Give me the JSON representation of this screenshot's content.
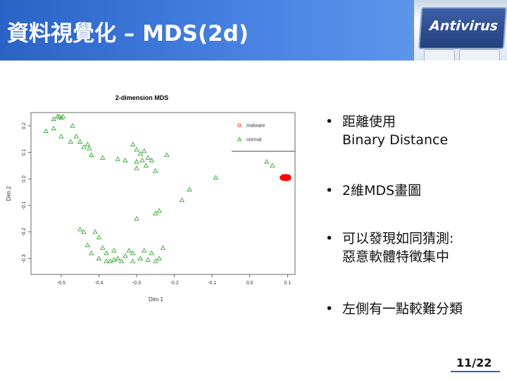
{
  "header": {
    "title": "資料視覺化 – MDS(2d)",
    "banner_text": "Antivirus"
  },
  "bullets": [
    {
      "lines": [
        "距離使用",
        "Binary Distance"
      ]
    },
    {
      "lines": [
        "2維MDS畫圖"
      ]
    },
    {
      "lines": [
        "可以發現如同猜測:",
        "惡意軟體特徵集中"
      ]
    },
    {
      "lines": [
        "左側有一點較難分類"
      ]
    }
  ],
  "bullet_symbol": "•",
  "page_number": "11/22",
  "chart_data": {
    "type": "scatter",
    "title": "2-dimension MDS",
    "xlabel": "Dim 1",
    "ylabel": "Dim 2",
    "xlim": [
      -0.58,
      0.12
    ],
    "ylim": [
      -0.36,
      0.25
    ],
    "x_ticks": [
      -0.5,
      -0.4,
      -0.3,
      -0.2,
      -0.1,
      0.0,
      0.1
    ],
    "x_tick_labels": [
      "-0.5",
      "-0.4",
      "-0.3",
      "-0.2",
      "-0.1",
      "0.0",
      "0.1"
    ],
    "y_ticks": [
      0.2,
      0.1,
      0.0,
      -0.1,
      -0.2,
      -0.3
    ],
    "y_tick_labels": [
      "0.2",
      "0.1",
      "0.0",
      "-0.1",
      "-0.2",
      "-0.3"
    ],
    "legend_position": "top-right",
    "colors": {
      "malware": "#ff0000",
      "normal": "#22a022"
    },
    "series": [
      {
        "name": "malware",
        "marker": "circle",
        "center": [
          0.095,
          0.005
        ],
        "spread": [
          0.012,
          0.008
        ],
        "count": 170
      },
      {
        "name": "normal",
        "marker": "triangle",
        "points": [
          [
            -0.505,
            0.235
          ],
          [
            -0.51,
            0.235
          ],
          [
            -0.495,
            0.235
          ],
          [
            -0.52,
            0.225
          ],
          [
            -0.5,
            0.23
          ],
          [
            -0.54,
            0.18
          ],
          [
            -0.52,
            0.19
          ],
          [
            -0.5,
            0.16
          ],
          [
            -0.47,
            0.2
          ],
          [
            -0.46,
            0.16
          ],
          [
            -0.475,
            0.14
          ],
          [
            -0.45,
            0.14
          ],
          [
            -0.44,
            0.12
          ],
          [
            -0.43,
            0.13
          ],
          [
            -0.425,
            0.115
          ],
          [
            -0.42,
            0.09
          ],
          [
            -0.39,
            0.08
          ],
          [
            -0.35,
            0.075
          ],
          [
            -0.33,
            0.07
          ],
          [
            -0.31,
            0.13
          ],
          [
            -0.3,
            0.11
          ],
          [
            -0.3,
            0.065
          ],
          [
            -0.29,
            0.095
          ],
          [
            -0.285,
            0.07
          ],
          [
            -0.28,
            0.105
          ],
          [
            -0.275,
            0.05
          ],
          [
            -0.27,
            0.08
          ],
          [
            -0.3,
            0.04
          ],
          [
            -0.26,
            0.07
          ],
          [
            -0.25,
            0.03
          ],
          [
            -0.22,
            0.09
          ],
          [
            -0.16,
            -0.04
          ],
          [
            -0.09,
            0.005
          ],
          [
            -0.3,
            -0.15
          ],
          [
            -0.25,
            -0.13
          ],
          [
            -0.24,
            -0.12
          ],
          [
            -0.18,
            -0.08
          ],
          [
            -0.45,
            -0.19
          ],
          [
            -0.44,
            -0.2
          ],
          [
            -0.43,
            -0.25
          ],
          [
            -0.41,
            -0.2
          ],
          [
            -0.4,
            -0.22
          ],
          [
            -0.39,
            -0.26
          ],
          [
            -0.38,
            -0.28
          ],
          [
            -0.42,
            -0.28
          ],
          [
            -0.4,
            -0.3
          ],
          [
            -0.38,
            -0.31
          ],
          [
            -0.37,
            -0.31
          ],
          [
            -0.36,
            -0.305
          ],
          [
            -0.35,
            -0.3
          ],
          [
            -0.34,
            -0.31
          ],
          [
            -0.33,
            -0.29
          ],
          [
            -0.31,
            -0.31
          ],
          [
            -0.29,
            -0.3
          ],
          [
            -0.27,
            -0.305
          ],
          [
            -0.25,
            -0.31
          ],
          [
            -0.24,
            -0.3
          ],
          [
            -0.26,
            -0.28
          ],
          [
            -0.28,
            -0.27
          ],
          [
            -0.31,
            -0.28
          ],
          [
            -0.32,
            -0.27
          ],
          [
            -0.36,
            -0.27
          ],
          [
            -0.23,
            -0.26
          ],
          [
            0.045,
            0.065
          ],
          [
            0.06,
            0.05
          ]
        ]
      }
    ]
  }
}
